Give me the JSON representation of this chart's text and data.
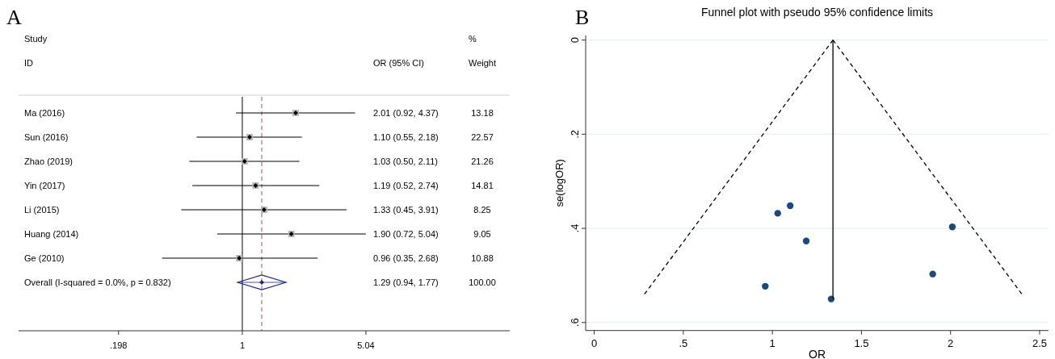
{
  "chart_data": [
    {
      "type": "scatter",
      "orientation": "horizontal",
      "title": "A",
      "categories": [
        "Ma (2016)",
        "Sun (2016)",
        "Zhao (2019)",
        "Yin (2017)",
        "Li (2015)",
        "Huang (2014)",
        "Ge (2010)",
        "Overall  (I-squared = 0.0%, p = 0.832)"
      ],
      "series": [
        {
          "marker": "diamond",
          "color": "#000000",
          "values": [
            2.01,
            1.1,
            1.03,
            1.19,
            1.33,
            1.9,
            0.96,
            null
          ],
          "errors": [
            [
              0.92,
              4.37
            ],
            [
              0.55,
              2.18
            ],
            [
              0.5,
              2.11
            ],
            [
              0.52,
              2.74
            ],
            [
              0.45,
              3.91
            ],
            [
              0.72,
              5.04
            ],
            [
              0.35,
              2.68
            ],
            null
          ]
        },
        {
          "marker": "diamond",
          "color": "#1f2a80",
          "values": [
            null,
            null,
            null,
            null,
            null,
            null,
            null,
            1.29
          ],
          "errors": [
            null,
            null,
            null,
            null,
            null,
            null,
            null,
            [
              0.94,
              1.77
            ]
          ]
        }
      ],
      "log": "x",
      "xlim": [
        0.0535,
        33.1
      ],
      "xticks": [
        {
          "value": 0.198,
          "label": ".198"
        },
        1,
        5.04
      ],
      "ref_lines": [
        {
          "axis": "x",
          "value": 1,
          "color": "#000000",
          "line_style": "solid"
        },
        {
          "axis": "x",
          "value": 1.29,
          "color": "#a0506a",
          "line_style": "dashed"
        }
      ],
      "annotations": [
        "Study",
        "ID",
        "OR (95% CI)",
        "%",
        "Weight",
        "2.01 (0.92, 4.37)",
        "1.10 (0.55, 2.18)",
        "1.03 (0.50, 2.11)",
        "1.19 (0.52, 2.74)",
        "1.33 (0.45, 3.91)",
        "1.90 (0.72, 5.04)",
        "0.96 (0.35, 2.68)",
        "1.29 (0.94, 1.77)",
        "13.18",
        "22.57",
        "21.26",
        "14.81",
        "8.25",
        "9.05",
        "10.88",
        "100.00"
      ]
    },
    {
      "type": "scatter",
      "title": "Funnel plot with pseudo 95% confidence limits",
      "xlabel": "OR",
      "ylabel": "se(logOR)",
      "annotations": [
        "B"
      ],
      "series": [
        {
          "marker": "circle",
          "color": "#1b4a7a",
          "x": [
            2.01,
            1.1,
            1.03,
            1.19,
            1.33,
            1.9,
            0.96
          ],
          "values": [
            0.397,
            0.352,
            0.368,
            0.427,
            0.55,
            0.497,
            0.523
          ]
        },
        {
          "type": "line",
          "color": "#000000",
          "line_style": "dashed",
          "x": [
            1.34,
            0.274
          ],
          "values": [
            0,
            0.544
          ]
        },
        {
          "type": "line",
          "color": "#000000",
          "line_style": "dashed",
          "x": [
            1.34,
            2.409
          ],
          "values": [
            0,
            0.544
          ]
        },
        {
          "type": "line",
          "color": "#000000",
          "line_style": "solid",
          "x": [
            1.34,
            1.34
          ],
          "values": [
            0,
            0.55
          ]
        }
      ],
      "xlim": [
        -0.048,
        2.55
      ],
      "xticks": [
        0,
        {
          "value": 0.5,
          "label": ".5"
        },
        1,
        1.5,
        2,
        2.5
      ],
      "ylim": [
        0.617,
        -0.01
      ],
      "yticks": [
        0,
        {
          "value": 0.2,
          "label": ".2"
        },
        {
          "value": 0.4,
          "label": ".4"
        },
        {
          "value": 0.6,
          "label": ".6"
        }
      ],
      "grid": "y"
    }
  ]
}
